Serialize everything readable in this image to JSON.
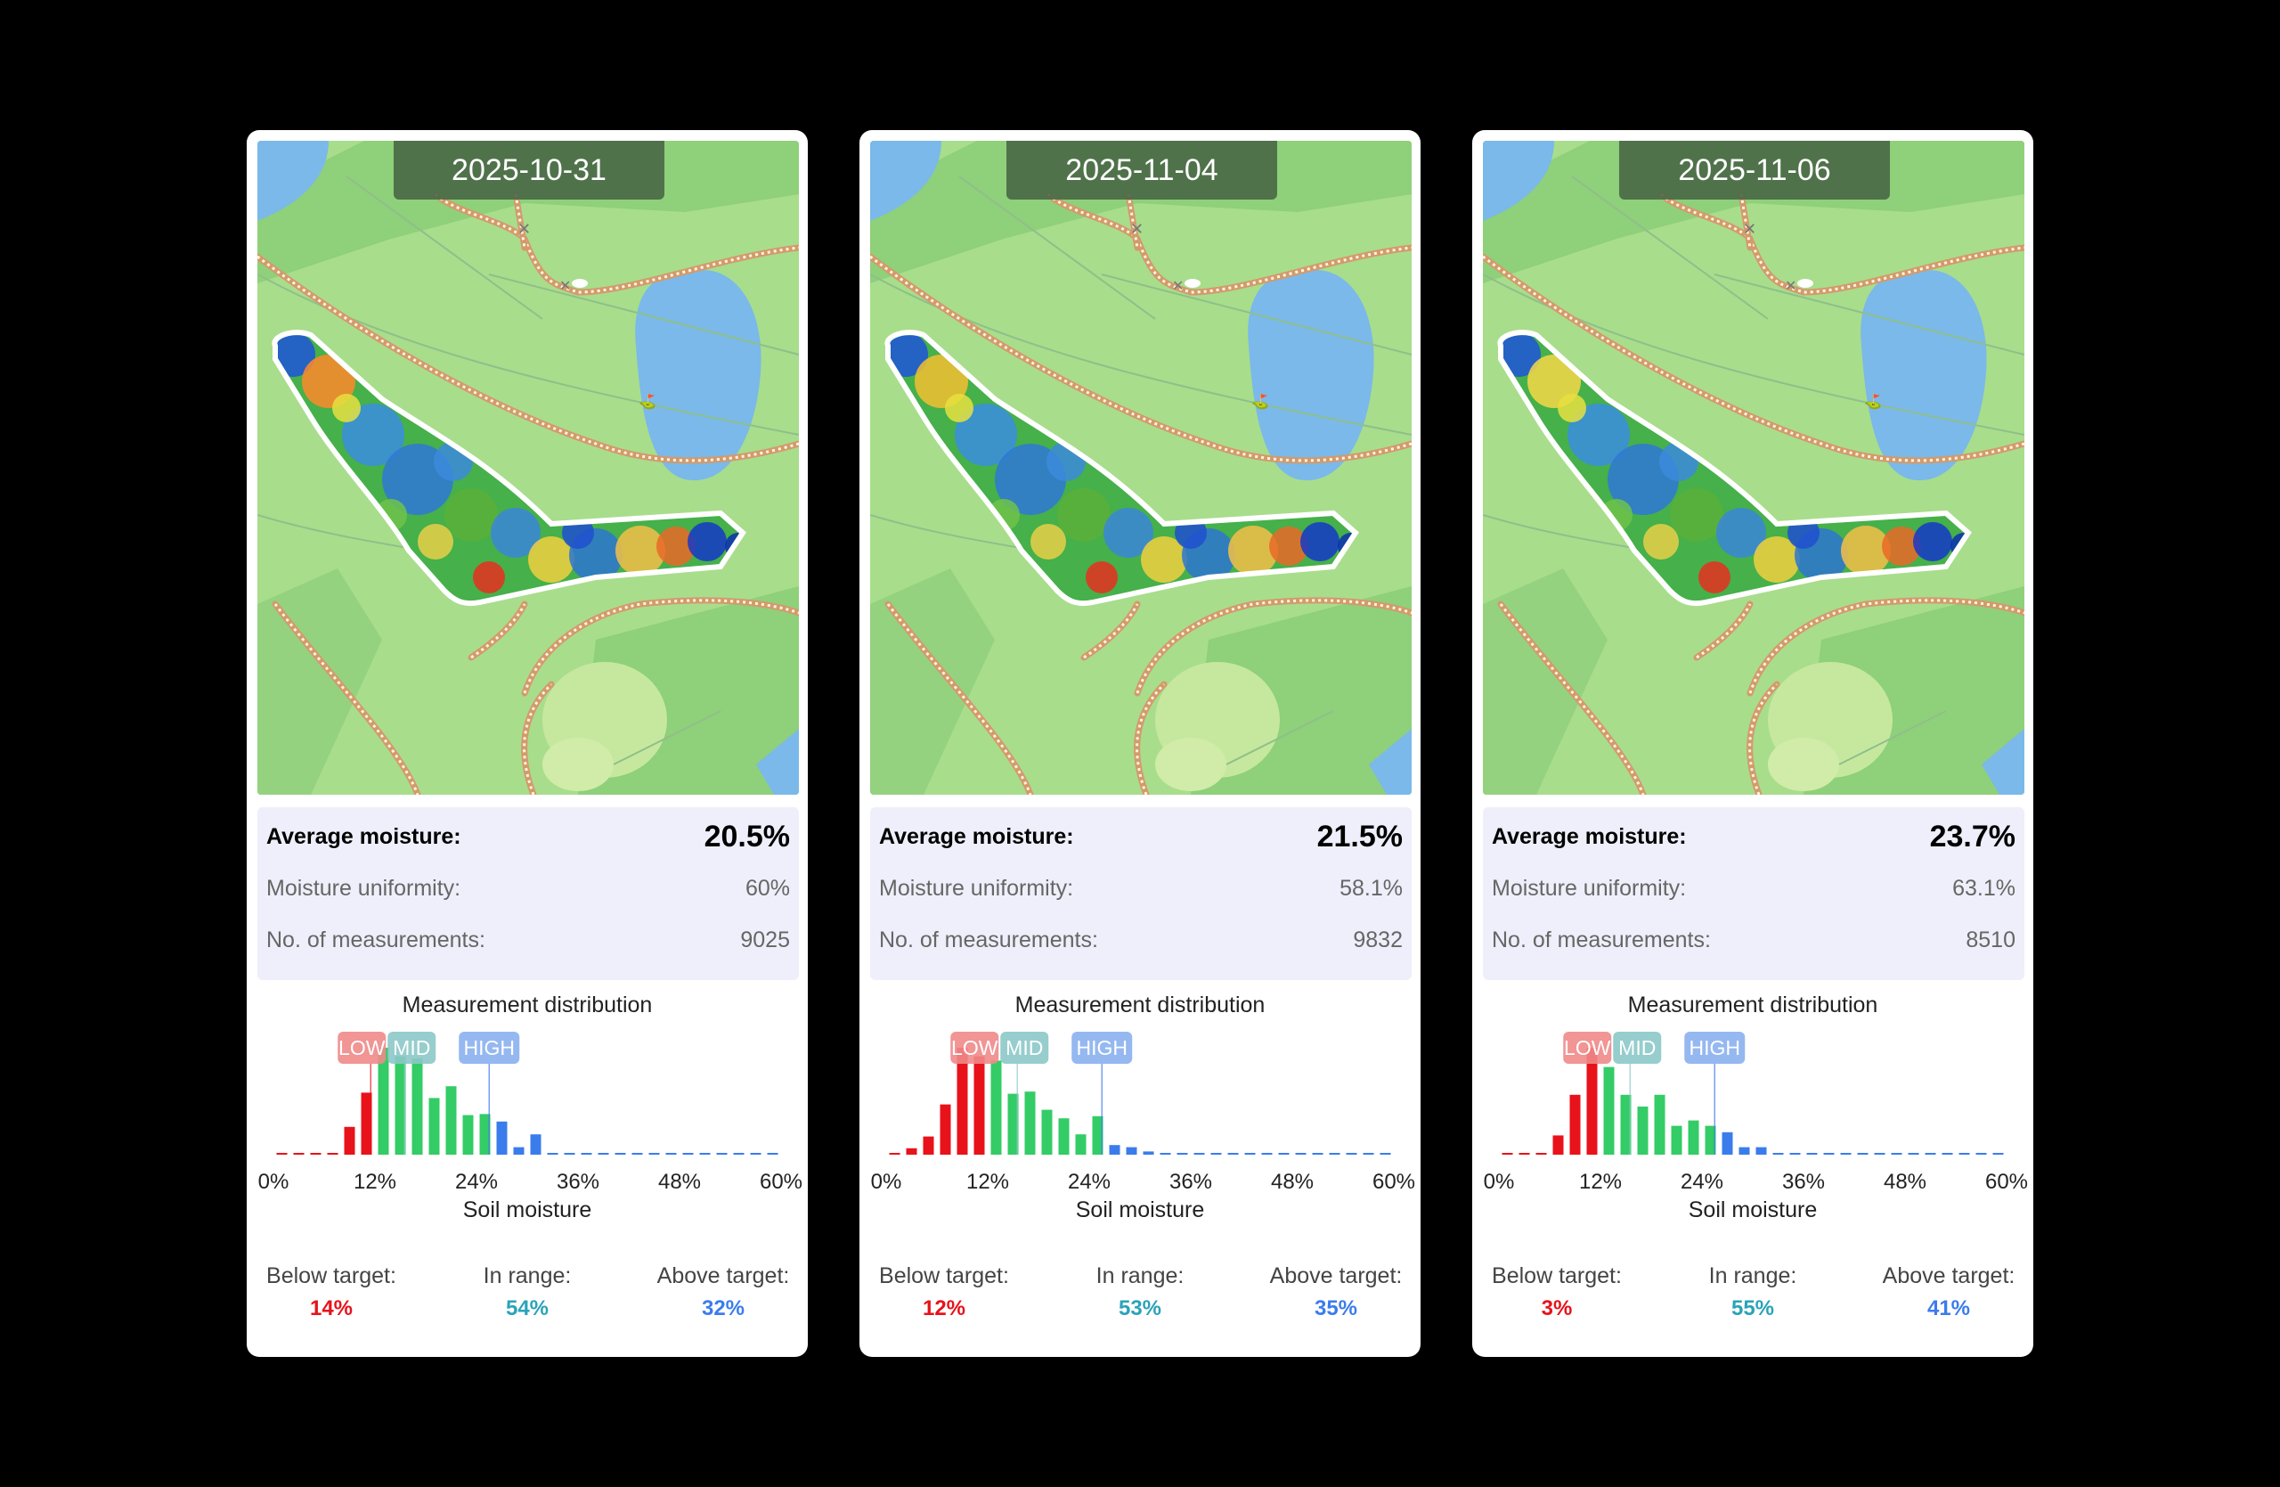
{
  "colors": {
    "below": "#e8121a",
    "in_range": "#33cc66",
    "above": "#3b7ced",
    "in_range_text": "#2aa3b8",
    "low_tag": "#f08a8a",
    "mid_tag": "#8cc8c8",
    "high_tag": "#8ab0f0"
  },
  "labels": {
    "average_moisture": "Average moisture:",
    "moisture_uniformity": "Moisture uniformity:",
    "num_measurements": "No. of measurements:",
    "histogram_title": "Measurement distribution",
    "below_target": "Below target:",
    "in_range": "In range:",
    "above_target": "Above target:",
    "low": "LOW",
    "mid": "MID",
    "high": "HIGH"
  },
  "chart_data": [
    {
      "type": "bar",
      "date": "2025-10-31",
      "average_moisture": "20.5%",
      "moisture_uniformity": "60%",
      "num_measurements": "9025",
      "below_pct": "14%",
      "in_range_pct": "54%",
      "above_pct": "32%",
      "title": "Measurement distribution",
      "xlabel": "Soil moisture",
      "x_tick_labels": [
        "0%",
        "12%",
        "24%",
        "36%",
        "48%",
        "60%"
      ],
      "xlim": [
        0,
        60
      ],
      "bin_width": 2,
      "thresholds": {
        "low": 11.5,
        "mid": 15.5,
        "high": 25.5
      },
      "values": [
        0,
        0,
        0,
        0,
        0.26,
        0.58,
        1.0,
        0.92,
        0.9,
        0.53,
        0.64,
        0.37,
        0.38,
        0.31,
        0.07,
        0.19,
        0,
        0,
        0,
        0,
        0,
        0,
        0,
        0,
        0,
        0,
        0,
        0,
        0,
        0
      ]
    },
    {
      "type": "bar",
      "date": "2025-11-04",
      "average_moisture": "21.5%",
      "moisture_uniformity": "58.1%",
      "num_measurements": "9832",
      "below_pct": "12%",
      "in_range_pct": "53%",
      "above_pct": "35%",
      "title": "Measurement distribution",
      "xlabel": "Soil moisture",
      "x_tick_labels": [
        "0%",
        "12%",
        "24%",
        "36%",
        "48%",
        "60%"
      ],
      "xlim": [
        0,
        60
      ],
      "bin_width": 2,
      "thresholds": {
        "low": 11.5,
        "mid": 15.5,
        "high": 25.5
      },
      "values": [
        0,
        0.06,
        0.17,
        0.47,
        1.0,
        0.92,
        0.88,
        0.57,
        0.59,
        0.42,
        0.34,
        0.19,
        0.36,
        0.09,
        0.07,
        0.03,
        0,
        0,
        0,
        0,
        0,
        0,
        0,
        0,
        0,
        0,
        0,
        0,
        0,
        0
      ]
    },
    {
      "type": "bar",
      "date": "2025-11-06",
      "average_moisture": "23.7%",
      "moisture_uniformity": "63.1%",
      "num_measurements": "8510",
      "below_pct": "3%",
      "in_range_pct": "55%",
      "above_pct": "41%",
      "title": "Measurement distribution",
      "xlabel": "Soil moisture",
      "x_tick_labels": [
        "0%",
        "12%",
        "24%",
        "36%",
        "48%",
        "60%"
      ],
      "xlim": [
        0,
        60
      ],
      "bin_width": 2,
      "thresholds": {
        "low": 11.5,
        "mid": 15.5,
        "high": 25.5
      },
      "values": [
        0,
        0,
        0,
        0.18,
        0.56,
        1.0,
        0.82,
        0.56,
        0.45,
        0.56,
        0.27,
        0.32,
        0.27,
        0.21,
        0.07,
        0.07,
        0,
        0,
        0,
        0,
        0,
        0,
        0,
        0,
        0,
        0,
        0,
        0,
        0,
        0
      ]
    }
  ]
}
